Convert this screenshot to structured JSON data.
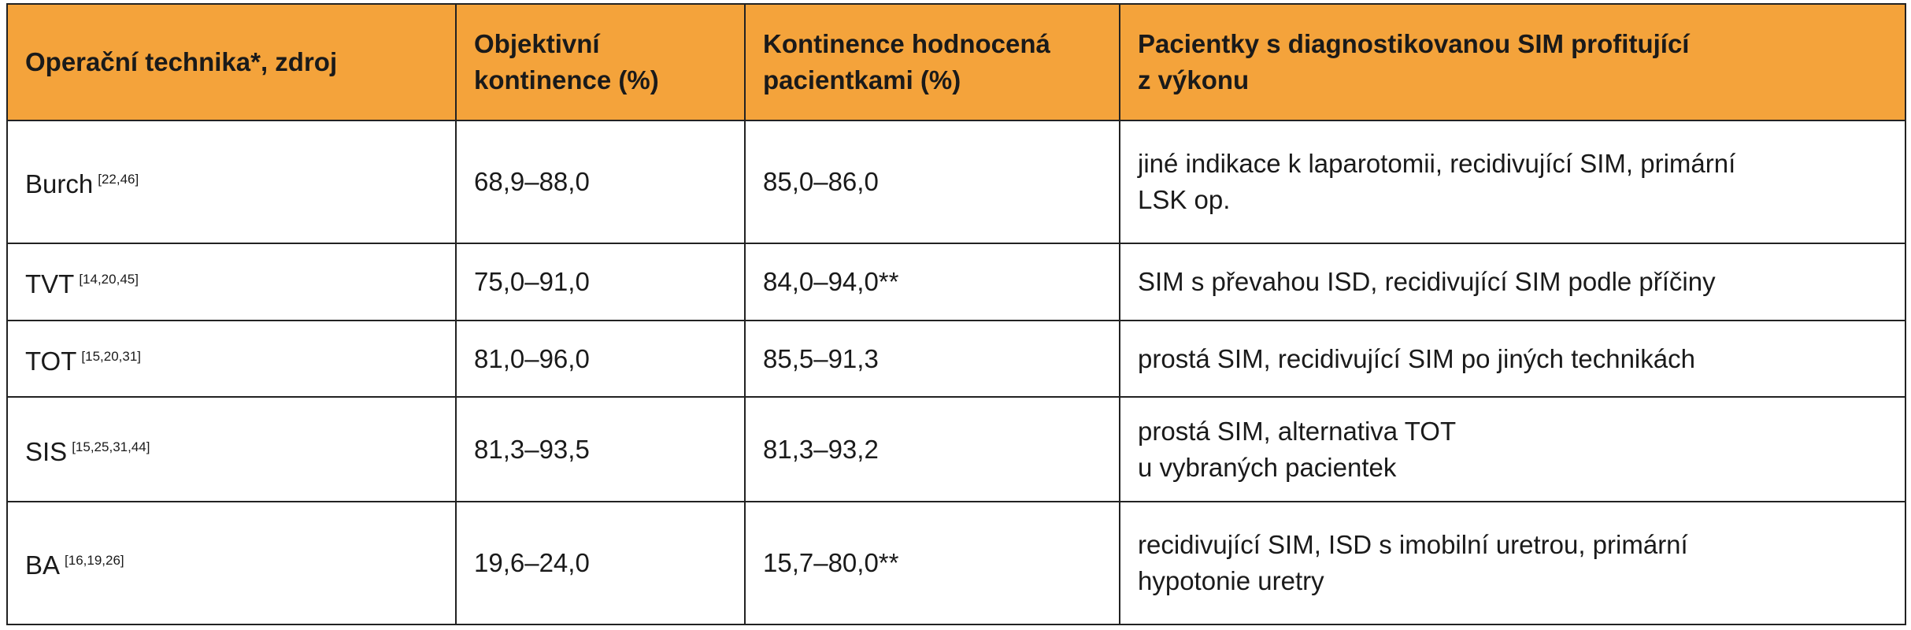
{
  "table": {
    "header": [
      [
        "Operační technika*,  zdroj"
      ],
      [
        "Objektivní",
        "kontinence (%)"
      ],
      [
        "Kontinence hodnocená",
        "pacientkami (%)"
      ],
      [
        "Pacientky s diagnostikovanou SIM profitující",
        "z výkonu"
      ]
    ],
    "rows": [
      {
        "technique": "Burch",
        "refs": "[22,46]",
        "objective": "68,9–88,0",
        "patient": "85,0–86,0",
        "indication": [
          "jiné indikace k laparotomii, recidivující SIM, primární",
          "LSK op."
        ]
      },
      {
        "technique": "TVT",
        "refs": "[14,20,45]",
        "objective": "75,0–91,0",
        "patient": "84,0–94,0**",
        "indication": [
          "SIM s převahou ISD, recidivující SIM podle příčiny"
        ]
      },
      {
        "technique": "TOT",
        "refs": "[15,20,31]",
        "objective": "81,0–96,0",
        "patient": "85,5–91,3",
        "indication": [
          "prostá SIM, recidivující SIM po jiných technikách"
        ]
      },
      {
        "technique": "SIS",
        "refs": "[15,25,31,44]",
        "objective": "81,3–93,5",
        "patient": "81,3–93,2",
        "indication": [
          "prostá SIM, alternativa TOT",
          "u vybraných pacientek"
        ]
      },
      {
        "technique": "BA",
        "refs": "[16,19,26]",
        "objective": "19,6–24,0",
        "patient": "15,7–80,0**",
        "indication": [
          "recidivující SIM, ISD s imobilní uretrou, primární",
          "hypotonie uretry"
        ]
      }
    ]
  }
}
